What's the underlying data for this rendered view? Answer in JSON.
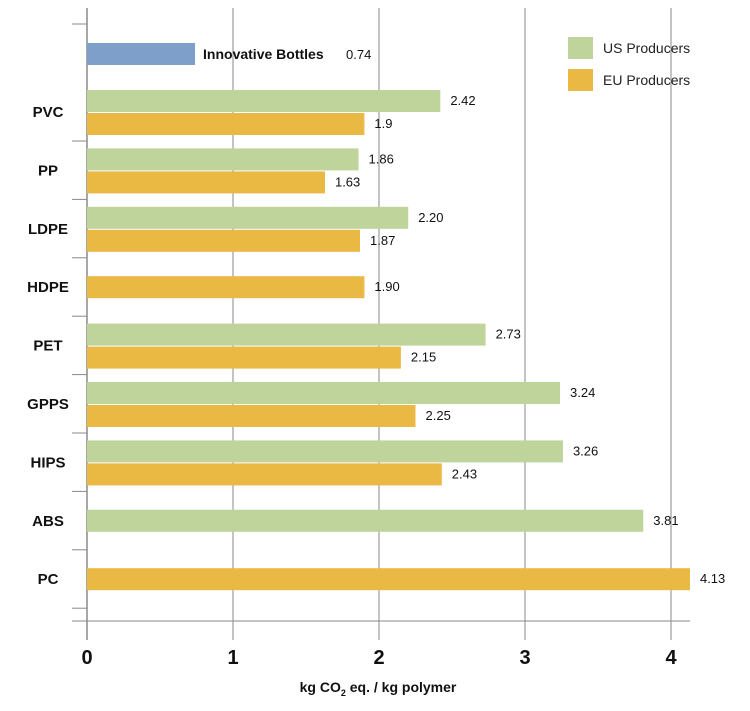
{
  "chart_data": {
    "type": "bar",
    "orientation": "horizontal",
    "xlabel_parts": [
      "kg CO",
      "2",
      " eq. / kg polymer"
    ],
    "xlim": [
      0,
      4.2
    ],
    "xticks": [
      "0",
      "1",
      "2",
      "3",
      "4"
    ],
    "highlight": {
      "name": "Innovative Bottles",
      "value": 0.74,
      "label": "0.74",
      "color": "#7f9fcb"
    },
    "categories": [
      "PVC",
      "PP",
      "LDPE",
      "HDPE",
      "PET",
      "GPPS",
      "HIPS",
      "ABS",
      "PC"
    ],
    "series": [
      {
        "name": "US Producers",
        "color": "#bed49a",
        "values": [
          2.42,
          1.86,
          2.2,
          null,
          2.73,
          3.24,
          3.26,
          3.81,
          null
        ],
        "labels": [
          "2.42",
          "1.86",
          "2.20",
          null,
          "2.73",
          "3.24",
          "3.26",
          "3.81",
          null
        ]
      },
      {
        "name": "EU Producers",
        "color": "#e9b944",
        "values": [
          1.9,
          1.63,
          1.87,
          1.9,
          2.15,
          2.25,
          2.43,
          null,
          4.13
        ],
        "labels": [
          "1.9",
          "1.63",
          "1.87",
          "1.90",
          "2.15",
          "2.25",
          "2.43",
          null,
          "4.13"
        ]
      }
    ],
    "legend_position": "top-right",
    "grid": "vertical"
  }
}
